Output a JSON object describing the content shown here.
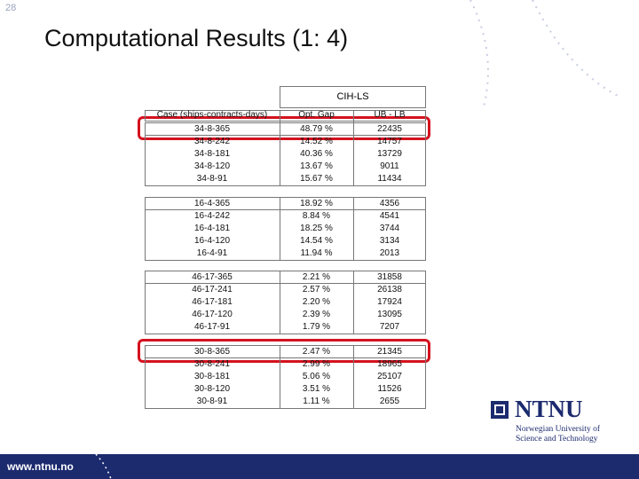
{
  "slide_number": "28",
  "title": "Computational Results (1: 4)",
  "table": {
    "method": "CIH-LS",
    "columns": [
      "Case (ships-contracts-days)",
      "Opt. Gap",
      "UB - LB"
    ],
    "groups": [
      [
        [
          "34-8-365",
          "48.79 %",
          "22435"
        ],
        [
          "34-8-242",
          "14.52 %",
          "14757"
        ],
        [
          "34-8-181",
          "40.36 %",
          "13729"
        ],
        [
          "34-8-120",
          "13.67 %",
          "9011"
        ],
        [
          "34-8-91",
          "15.67 %",
          "11434"
        ]
      ],
      [
        [
          "16-4-365",
          "18.92 %",
          "4356"
        ],
        [
          "16-4-242",
          "8.84 %",
          "4541"
        ],
        [
          "16-4-181",
          "18.25 %",
          "3744"
        ],
        [
          "16-4-120",
          "14.54 %",
          "3134"
        ],
        [
          "16-4-91",
          "11.94 %",
          "2013"
        ]
      ],
      [
        [
          "46-17-365",
          "2.21 %",
          "31858"
        ],
        [
          "46-17-241",
          "2.57 %",
          "26138"
        ],
        [
          "46-17-181",
          "2.20 %",
          "17924"
        ],
        [
          "46-17-120",
          "2.39 %",
          "13095"
        ],
        [
          "46-17-91",
          "1.79 %",
          "7207"
        ]
      ],
      [
        [
          "30-8-365",
          "2.47 %",
          "21345"
        ],
        [
          "30-8-241",
          "2.99 %",
          "18965"
        ],
        [
          "30-8-181",
          "5.06 %",
          "25107"
        ],
        [
          "30-8-120",
          "3.51 %",
          "11526"
        ],
        [
          "30-8-91",
          "1.11 %",
          "2655"
        ]
      ]
    ]
  },
  "logo": {
    "name": "NTNU",
    "line1": "Norwegian University of",
    "line2": "Science and Technology"
  },
  "footer": "www.ntnu.no"
}
